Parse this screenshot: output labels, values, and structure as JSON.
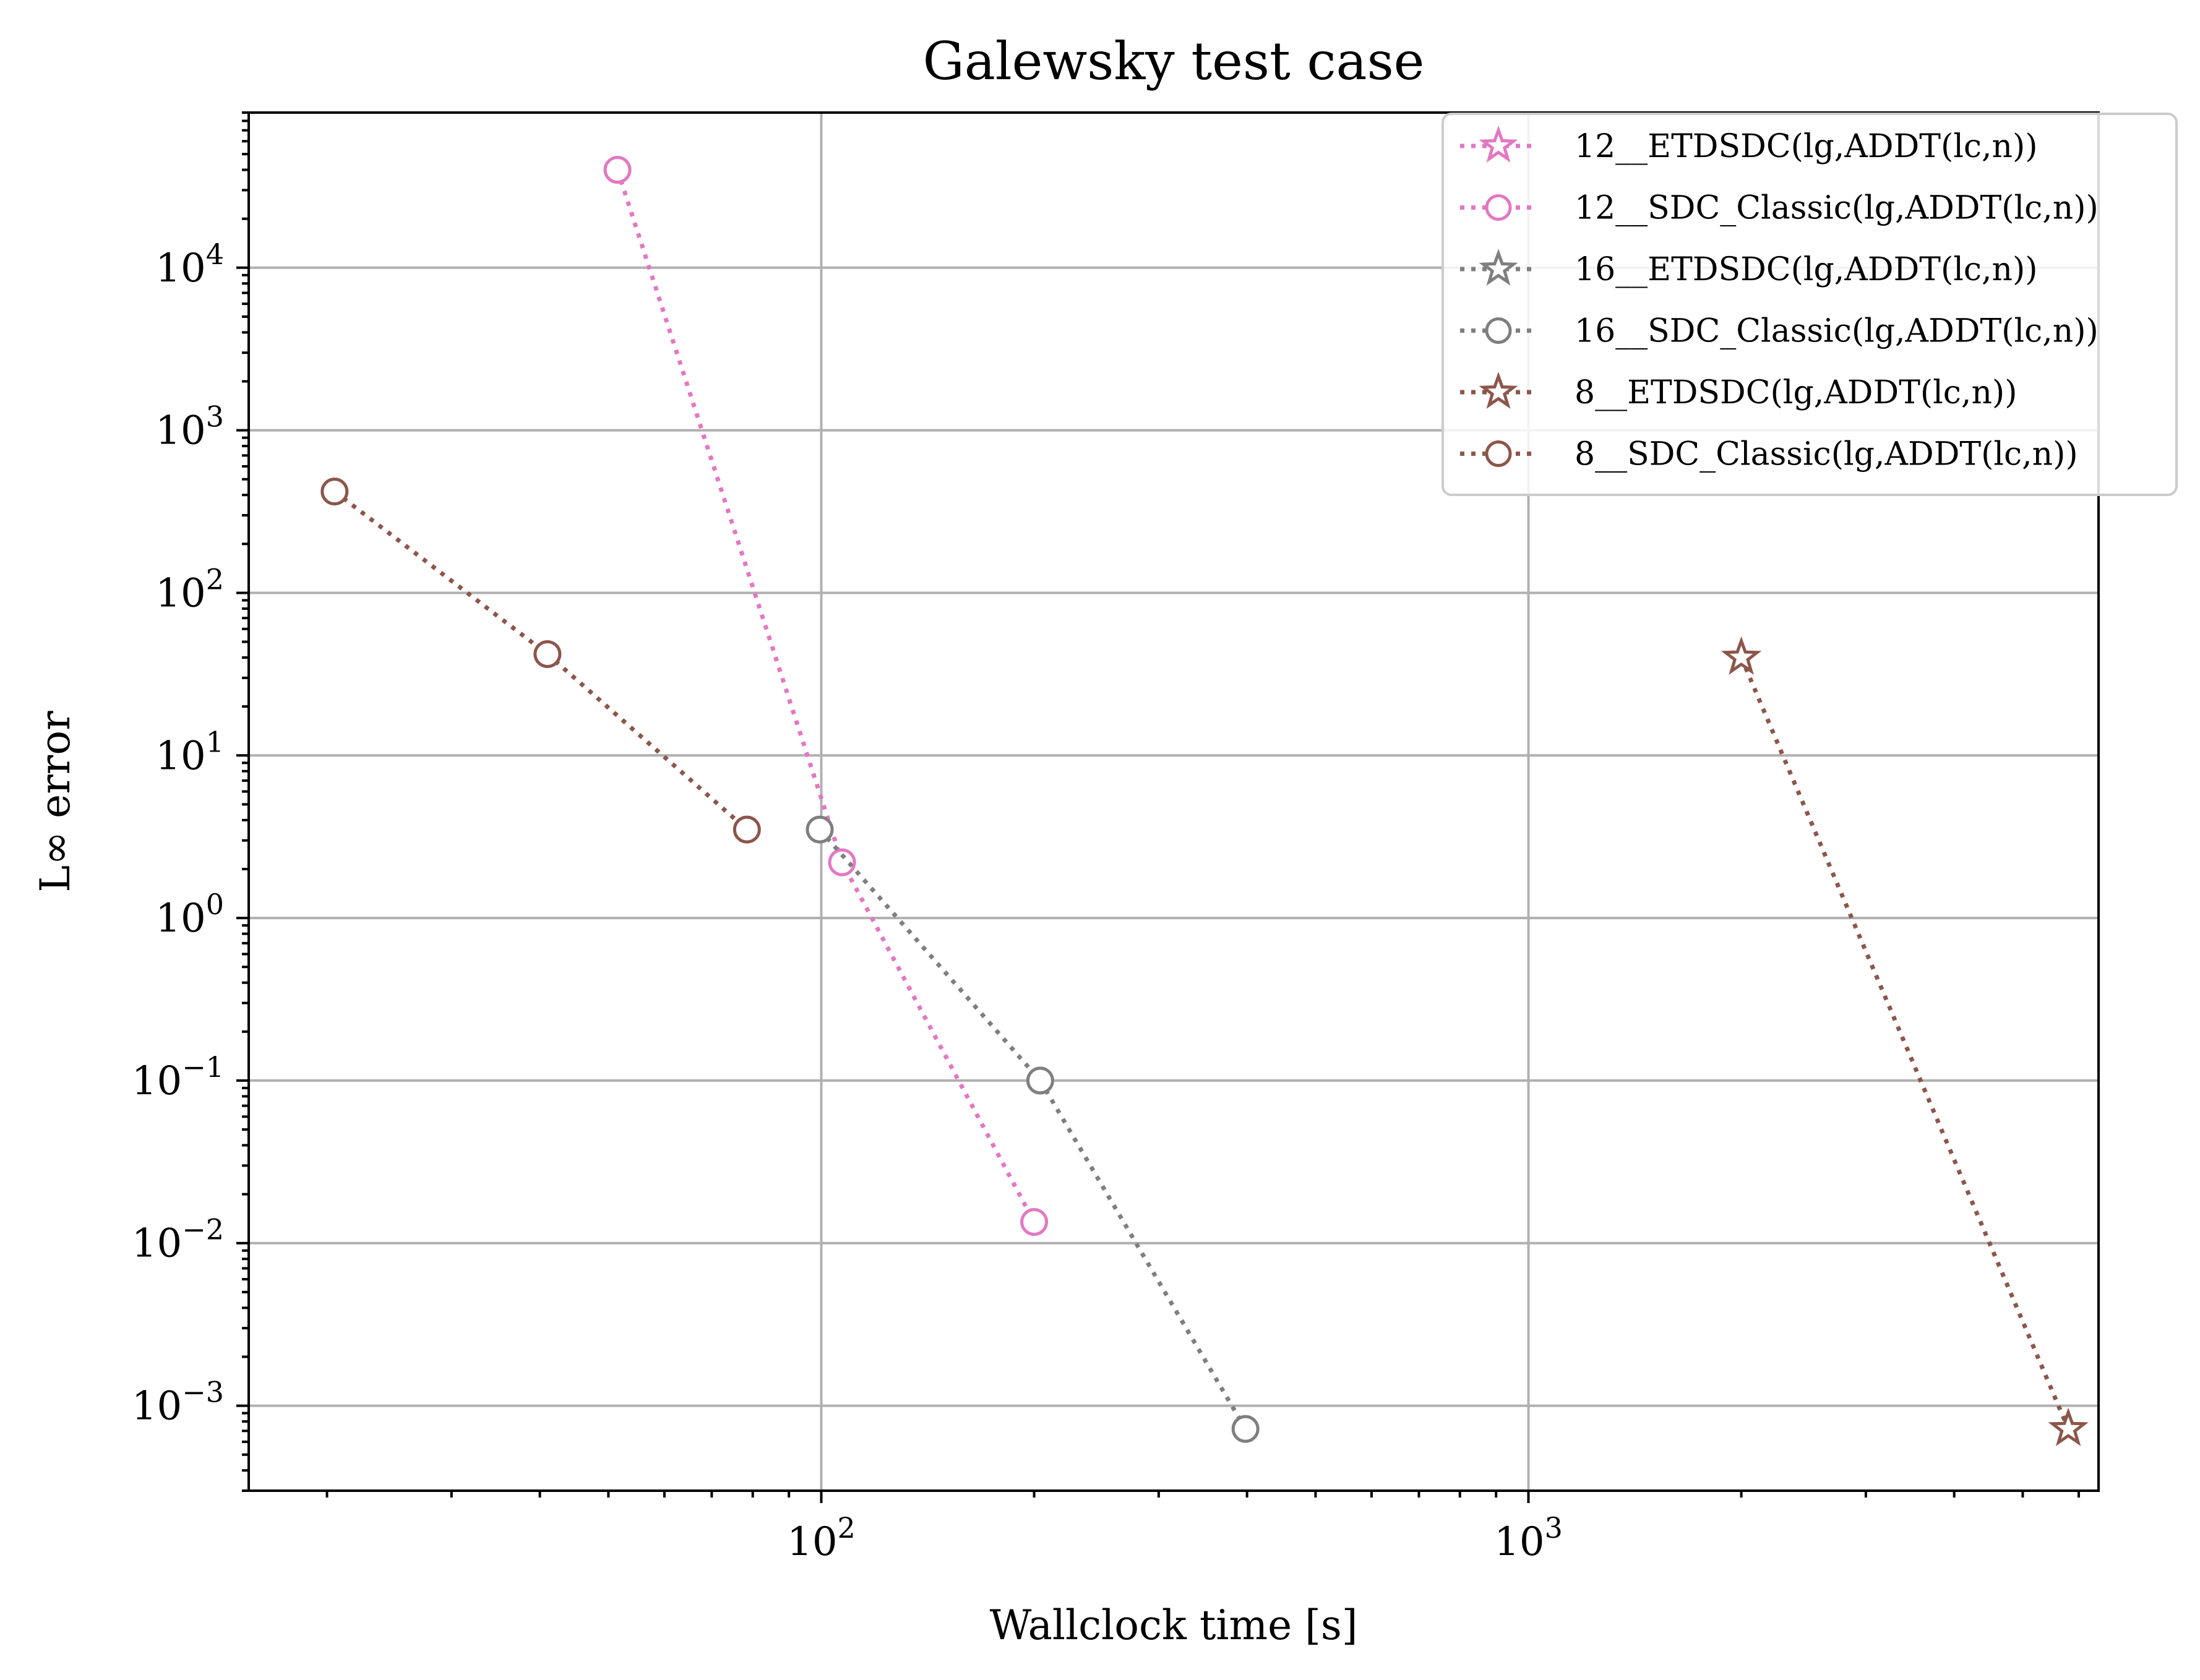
{
  "chart_data": {
    "type": "scatter",
    "title": "Galewsky test case",
    "xlabel": "Wallclock time [s]",
    "ylabel": "L∞ error",
    "xscale": "log",
    "yscale": "log",
    "xlim": [
      15.5,
      6400
    ],
    "ylim": [
      0.0003,
      90000
    ],
    "grid": true,
    "legend_position": "top-right",
    "x_ticks": [
      {
        "value": 100,
        "base": "10",
        "exp": "2"
      },
      {
        "value": 1000,
        "base": "10",
        "exp": "3"
      }
    ],
    "y_ticks": [
      {
        "value": 10000,
        "base": "10",
        "exp": "4"
      },
      {
        "value": 1000,
        "base": "10",
        "exp": "3"
      },
      {
        "value": 100,
        "base": "10",
        "exp": "2"
      },
      {
        "value": 10,
        "base": "10",
        "exp": "1"
      },
      {
        "value": 1,
        "base": "10",
        "exp": "0"
      },
      {
        "value": 0.1,
        "base": "10",
        "exp": "−1"
      },
      {
        "value": 0.01,
        "base": "10",
        "exp": "−2"
      },
      {
        "value": 0.001,
        "base": "10",
        "exp": "−3"
      }
    ],
    "series": [
      {
        "name": "12__ETDSDC(lg,ADDT(lc,n))",
        "color": "#e377c2",
        "marker": "star",
        "points": []
      },
      {
        "name": "12__SDC_Classic(lg,ADDT(lc,n))",
        "color": "#e377c2",
        "marker": "circle",
        "points": [
          [
            51.5,
            40000
          ],
          [
            107,
            2.2
          ],
          [
            200,
            0.0135
          ]
        ]
      },
      {
        "name": "16__ETDSDC(lg,ADDT(lc,n))",
        "color": "#7f7f7f",
        "marker": "star",
        "points": []
      },
      {
        "name": "16__SDC_Classic(lg,ADDT(lc,n))",
        "color": "#7f7f7f",
        "marker": "circle",
        "points": [
          [
            99.5,
            3.5
          ],
          [
            204,
            0.1
          ],
          [
            398,
            0.00072
          ]
        ]
      },
      {
        "name": "8__ETDSDC(lg,ADDT(lc,n))",
        "color": "#8c564b",
        "marker": "star",
        "points": [
          [
            2000,
            40
          ],
          [
            5800,
            0.00072
          ]
        ]
      },
      {
        "name": "8__SDC_Classic(lg,ADDT(lc,n))",
        "color": "#8c564b",
        "marker": "circle",
        "points": [
          [
            20.5,
            420
          ],
          [
            41,
            42
          ],
          [
            78.5,
            3.5
          ]
        ]
      }
    ]
  }
}
